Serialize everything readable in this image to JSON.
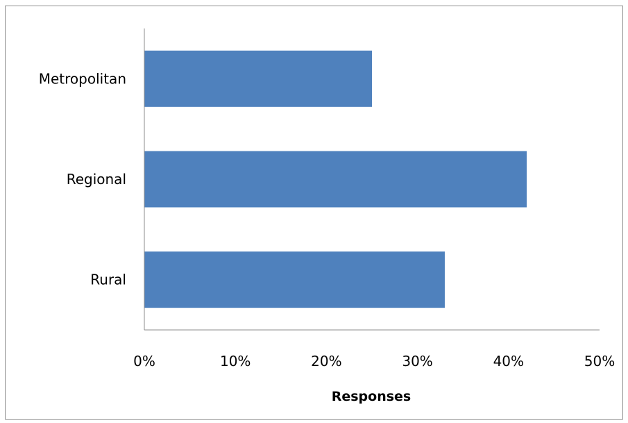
{
  "chart_data": {
    "type": "bar",
    "orientation": "horizontal",
    "categories": [
      "Metropolitan",
      "Regional",
      "Rural"
    ],
    "values": [
      0.25,
      0.42,
      0.33
    ],
    "xlabel": "Responses",
    "ylabel": "",
    "xlim": [
      0,
      0.5
    ],
    "x_ticks": [
      "0%",
      "10%",
      "20%",
      "30%",
      "40%",
      "50%"
    ],
    "bar_color": "#4f81bd",
    "grid": false,
    "legend": "none"
  }
}
